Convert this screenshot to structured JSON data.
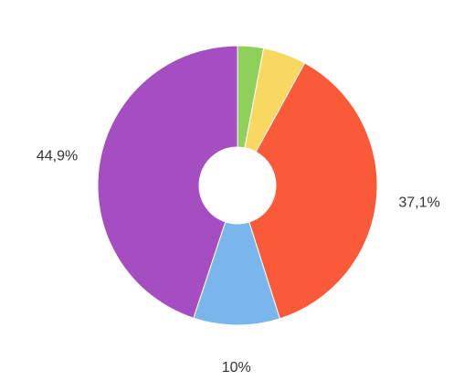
{
  "chart_data": {
    "type": "donut",
    "values": [
      3,
      5,
      37.1,
      10,
      44.9
    ],
    "value_labels": [
      null,
      null,
      "37,1%",
      "10%",
      "44,9%"
    ],
    "colors": [
      "#8fcf5b",
      "#f9d862",
      "#fa5a38",
      "#78b6ec",
      "#a44ec1"
    ]
  }
}
